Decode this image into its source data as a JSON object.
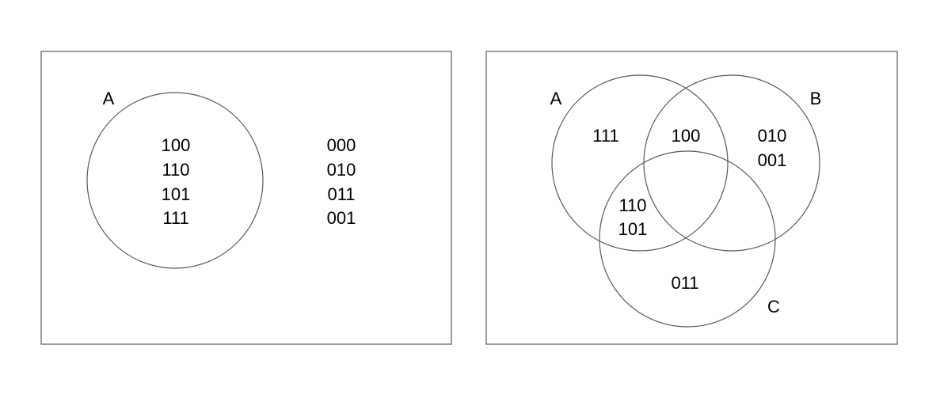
{
  "left_diagram": {
    "set_label": "A",
    "inside_values": [
      "100",
      "110",
      "101",
      "111"
    ],
    "outside_values": [
      "000",
      "010",
      "011",
      "001"
    ]
  },
  "right_diagram": {
    "set_labels": {
      "a": "A",
      "b": "B",
      "c": "C"
    },
    "regions": {
      "a_only": [
        "111"
      ],
      "a_and_b": [
        "100"
      ],
      "b_only": [
        "010",
        "001"
      ],
      "a_and_c": [
        "110",
        "101"
      ],
      "c_only": [
        "011"
      ]
    }
  }
}
